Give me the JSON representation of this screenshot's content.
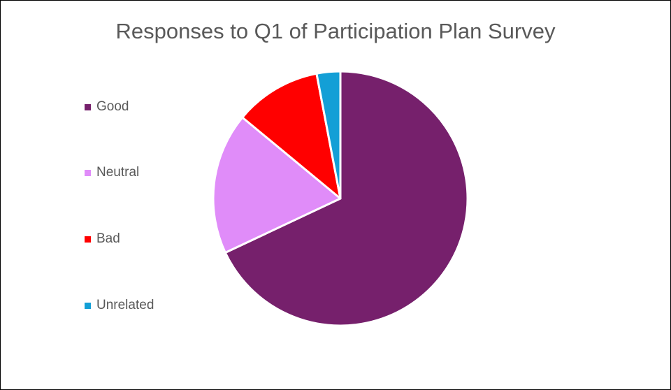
{
  "chart_data": {
    "type": "pie",
    "title": "Responses to Q1 of Participation Plan Survey",
    "categories": [
      "Good",
      "Neutral",
      "Bad",
      "Unrelated"
    ],
    "values": [
      68,
      18,
      11,
      3
    ],
    "colors": [
      "#76206c",
      "#e08cf9",
      "#ff0000",
      "#139fd6"
    ],
    "start": "top",
    "direction": "clockwise",
    "legend": "left"
  }
}
